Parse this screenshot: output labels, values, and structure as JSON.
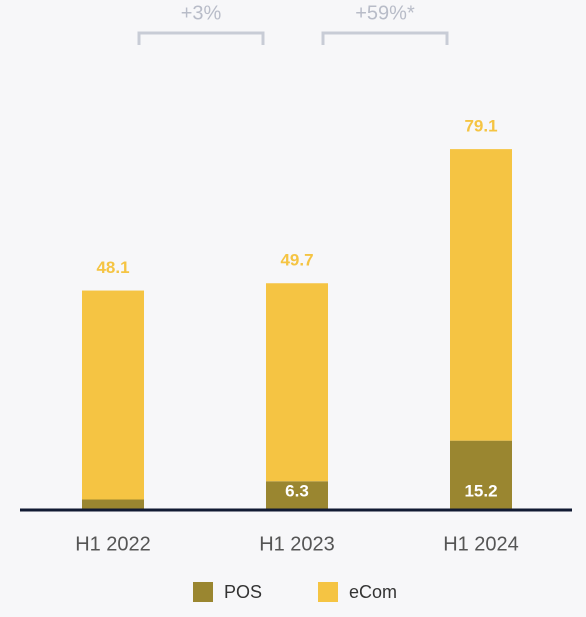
{
  "chart_data": {
    "type": "stacked_bar",
    "categories": [
      "H1 2022",
      "H1 2023",
      "H1 2024"
    ],
    "series": [
      {
        "name": "POS",
        "color": "#9a8630",
        "values": [
          2.3,
          6.3,
          15.2
        ]
      },
      {
        "name": "eCom",
        "color": "#f5c443",
        "values": [
          45.8,
          43.4,
          63.9
        ]
      }
    ],
    "totals": [
      48.1,
      49.7,
      79.1
    ],
    "annotations": [
      "+3%",
      "+59%*"
    ],
    "ylim": [
      0,
      80
    ]
  }
}
